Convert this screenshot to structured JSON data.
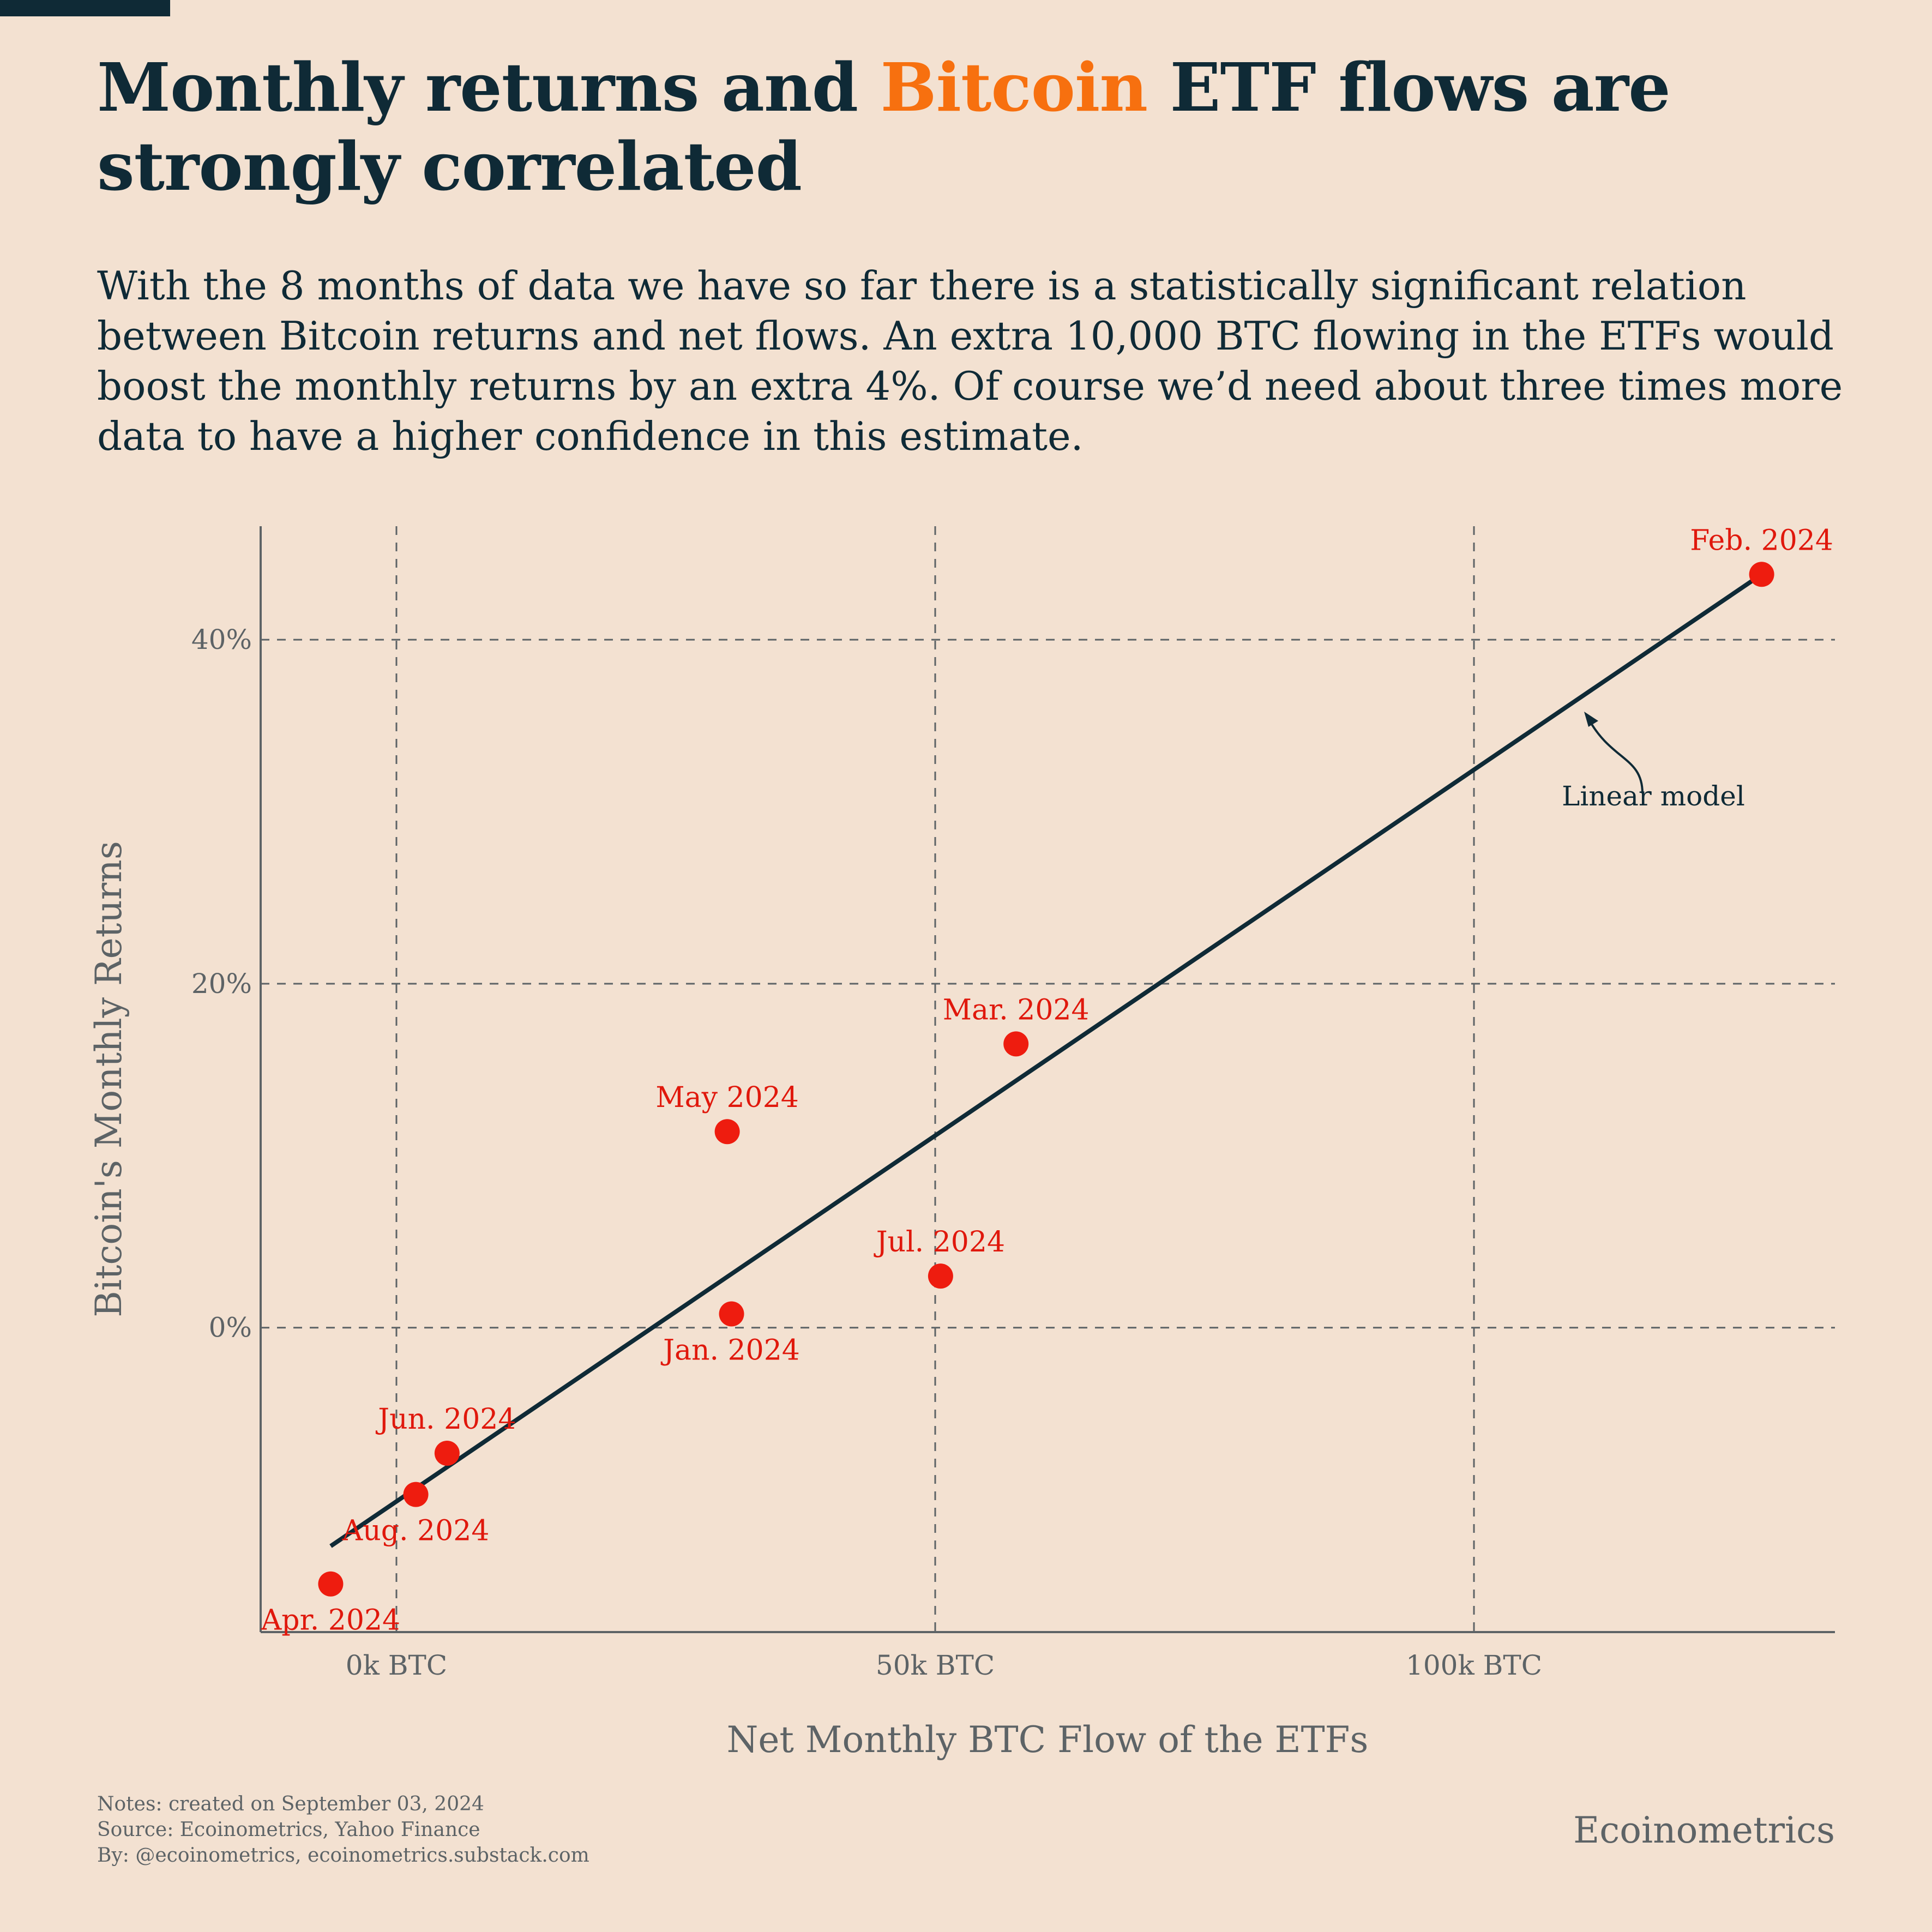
{
  "header": {
    "title_part1": "Monthly returns and ",
    "title_accent": "Bitcoin",
    "title_part2": " ETF flows are strongly correlated",
    "subtitle": "With the 8 months of data we have so far there is a statistically significant relation between Bitcoin returns and net flows. An extra 10,000 BTC flowing in the ETFs would boost the monthly returns by an extra 4%. Of course we’d need about three times more data to have a higher confidence in this estimate."
  },
  "colors": {
    "background": "#f3e1d1",
    "text": "#0f2a36",
    "accent": "#f7700f",
    "points": "#ee1c0f",
    "point_labels": "#e0180c",
    "line": "#0f2a36",
    "grid": "#5d6366",
    "muted": "#5d6366"
  },
  "chart_data": {
    "type": "scatter",
    "xlabel": "Net Monthly BTC Flow of the ETFs",
    "ylabel": "Bitcoin's Monthly Returns",
    "xlim": [
      -12600,
      133500
    ],
    "ylim": [
      -17.7,
      46.6
    ],
    "x_ticks": [
      {
        "value": 0,
        "label": "0k BTC"
      },
      {
        "value": 50000,
        "label": "50k BTC"
      },
      {
        "value": 100000,
        "label": "100k BTC"
      }
    ],
    "y_ticks": [
      {
        "value": 0,
        "label": "0%"
      },
      {
        "value": 20,
        "label": "20%"
      },
      {
        "value": 40,
        "label": "40%"
      }
    ],
    "grid": true,
    "points": [
      {
        "label": "Jan. 2024",
        "x": 31100,
        "y": 0.8,
        "label_pos": "below"
      },
      {
        "label": "Feb. 2024",
        "x": 126700,
        "y": 43.8,
        "label_pos": "above"
      },
      {
        "label": "Mar. 2024",
        "x": 57500,
        "y": 16.5,
        "label_pos": "above"
      },
      {
        "label": "Apr. 2024",
        "x": -6100,
        "y": -14.9,
        "label_pos": "below"
      },
      {
        "label": "May 2024",
        "x": 30700,
        "y": 11.4,
        "label_pos": "above"
      },
      {
        "label": "Jun. 2024",
        "x": 4700,
        "y": -7.3,
        "label_pos": "above"
      },
      {
        "label": "Jul. 2024",
        "x": 50500,
        "y": 3.0,
        "label_pos": "above"
      },
      {
        "label": "Aug. 2024",
        "x": 1800,
        "y": -9.7,
        "label_pos": "below"
      }
    ],
    "fit_line": {
      "label": "Linear model",
      "x0": -6100,
      "y0": -12.7,
      "x1": 126700,
      "y1": 43.8
    }
  },
  "footer": {
    "notes": "Notes: created on September 03, 2024",
    "source": "Source: Ecoinometrics, Yahoo Finance",
    "by": "By: @ecoinometrics, ecoinometrics.substack.com",
    "brand": "Ecoinometrics"
  }
}
